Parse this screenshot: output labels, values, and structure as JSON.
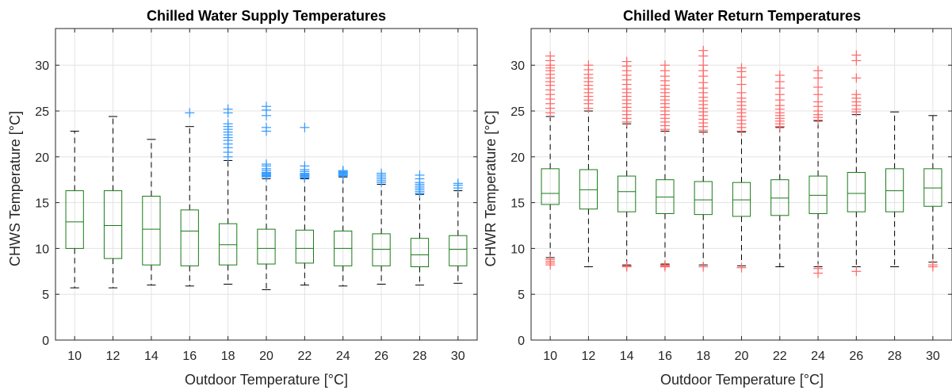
{
  "chart_data": [
    {
      "type": "box",
      "title": "Chilled Water Supply Temperatures",
      "xlabel": "Outdoor Temperature [°C]",
      "ylabel": "CHWS Temperature [°C]",
      "categories": [
        "10",
        "12",
        "14",
        "16",
        "18",
        "20",
        "22",
        "24",
        "26",
        "28",
        "30"
      ],
      "ylim": [
        0,
        34
      ],
      "yticks": [
        0,
        5,
        10,
        15,
        20,
        25,
        30
      ],
      "grid": true,
      "box_color": "#1a7a1a",
      "outlier_color": "#3399ff",
      "boxes": [
        {
          "x": "10",
          "whisker_low": 5.7,
          "q1": 10.0,
          "median": 12.9,
          "q3": 16.3,
          "whisker_high": 22.8,
          "outliers": []
        },
        {
          "x": "12",
          "whisker_low": 5.7,
          "q1": 8.9,
          "median": 12.5,
          "q3": 16.3,
          "whisker_high": 24.4,
          "outliers": []
        },
        {
          "x": "14",
          "whisker_low": 6.0,
          "q1": 8.2,
          "median": 12.1,
          "q3": 15.7,
          "whisker_high": 21.9,
          "outliers": []
        },
        {
          "x": "16",
          "whisker_low": 5.9,
          "q1": 8.1,
          "median": 11.9,
          "q3": 14.2,
          "whisker_high": 23.3,
          "outliers": [
            24.8
          ]
        },
        {
          "x": "18",
          "whisker_low": 6.1,
          "q1": 8.2,
          "median": 10.4,
          "q3": 12.7,
          "whisker_high": 19.6,
          "outliers": [
            20.0,
            20.5,
            21.0,
            21.4,
            21.8,
            22.1,
            22.4,
            22.7,
            23.0,
            23.3,
            23.6,
            24.8,
            25.2
          ]
        },
        {
          "x": "20",
          "whisker_low": 5.5,
          "q1": 8.3,
          "median": 10.0,
          "q3": 12.1,
          "whisker_high": 17.6,
          "outliers": [
            17.8,
            17.9,
            18.0,
            18.1,
            18.2,
            18.3,
            18.5,
            18.7,
            19.0,
            19.2,
            22.8,
            23.2,
            24.5,
            25.1,
            25.5
          ]
        },
        {
          "x": "22",
          "whisker_low": 6.0,
          "q1": 8.4,
          "median": 10.0,
          "q3": 12.0,
          "whisker_high": 17.6,
          "outliers": [
            17.7,
            17.8,
            17.9,
            18.0,
            18.1,
            18.2,
            18.4,
            18.6,
            19.0,
            23.2
          ]
        },
        {
          "x": "24",
          "whisker_low": 5.9,
          "q1": 8.1,
          "median": 10.0,
          "q3": 11.9,
          "whisker_high": 17.8,
          "outliers": [
            17.9,
            18.0,
            18.1,
            18.2,
            18.3,
            18.4,
            18.5
          ]
        },
        {
          "x": "26",
          "whisker_low": 6.1,
          "q1": 8.1,
          "median": 9.9,
          "q3": 11.6,
          "whisker_high": 17.0,
          "outliers": [
            17.2,
            17.4,
            17.6,
            17.8,
            18.0,
            18.2
          ]
        },
        {
          "x": "28",
          "whisker_low": 6.0,
          "q1": 8.0,
          "median": 9.3,
          "q3": 11.1,
          "whisker_high": 15.9,
          "outliers": [
            16.0,
            16.2,
            16.4,
            16.6,
            16.8,
            17.0,
            17.2,
            17.6,
            18.0
          ]
        },
        {
          "x": "30",
          "whisker_low": 6.2,
          "q1": 8.1,
          "median": 9.9,
          "q3": 11.4,
          "whisker_high": 16.3,
          "outliers": [
            16.6,
            16.9,
            17.1
          ]
        }
      ]
    },
    {
      "type": "box",
      "title": "Chilled Water Return Temperatures",
      "xlabel": "Outdoor Temperature [°C]",
      "ylabel": "CHWR Temperature [°C]",
      "categories": [
        "10",
        "12",
        "14",
        "16",
        "18",
        "20",
        "22",
        "24",
        "26",
        "28",
        "30"
      ],
      "ylim": [
        0,
        34
      ],
      "yticks": [
        0,
        5,
        10,
        15,
        20,
        25,
        30
      ],
      "grid": true,
      "box_color": "#1a7a1a",
      "outlier_color": "#ff6666",
      "boxes": [
        {
          "x": "10",
          "whisker_low": 9.0,
          "q1": 14.8,
          "median": 16.0,
          "q3": 18.7,
          "whisker_high": 24.4,
          "outliers": [
            8.2,
            8.4,
            8.6,
            8.8,
            24.8,
            25.3,
            25.8,
            26.3,
            26.8,
            27.3,
            27.8,
            28.2,
            28.6,
            29.0,
            29.4,
            29.7,
            30.0,
            30.5,
            31.0
          ]
        },
        {
          "x": "12",
          "whisker_low": 8.0,
          "q1": 14.3,
          "median": 16.4,
          "q3": 18.6,
          "whisker_high": 25.0,
          "outliers": [
            25.3,
            25.8,
            26.2,
            26.6,
            27.0,
            27.4,
            27.8,
            28.2,
            28.6,
            29.0,
            29.5,
            30.0
          ]
        },
        {
          "x": "14",
          "whisker_low": 8.2,
          "q1": 14.0,
          "median": 16.2,
          "q3": 17.9,
          "whisker_high": 23.6,
          "outliers": [
            8.0,
            8.1,
            23.8,
            24.2,
            24.6,
            25.0,
            25.4,
            25.8,
            26.2,
            26.6,
            27.0,
            27.4,
            27.9,
            28.4,
            28.9,
            29.4,
            29.9,
            30.4
          ]
        },
        {
          "x": "16",
          "whisker_low": 8.3,
          "q1": 13.8,
          "median": 15.6,
          "q3": 17.5,
          "whisker_high": 22.8,
          "outliers": [
            8.0,
            8.1,
            8.2,
            23.0,
            23.4,
            23.8,
            24.2,
            24.6,
            25.0,
            25.4,
            25.8,
            26.2,
            26.6,
            27.0,
            27.4,
            27.8,
            28.3,
            28.8,
            29.4,
            30.0
          ]
        },
        {
          "x": "18",
          "whisker_low": 8.2,
          "q1": 13.7,
          "median": 15.3,
          "q3": 17.3,
          "whisker_high": 22.7,
          "outliers": [
            8.0,
            22.9,
            23.3,
            23.7,
            24.1,
            24.5,
            24.9,
            25.3,
            25.7,
            26.1,
            26.5,
            27.0,
            27.5,
            28.1,
            28.8,
            29.4,
            30.0,
            31.0,
            31.6
          ]
        },
        {
          "x": "20",
          "whisker_low": 8.1,
          "q1": 13.5,
          "median": 15.3,
          "q3": 17.2,
          "whisker_high": 22.7,
          "outliers": [
            7.9,
            22.8,
            23.2,
            23.6,
            24.0,
            24.4,
            24.8,
            25.2,
            25.6,
            26.0,
            26.4,
            27.0,
            27.9,
            28.7,
            29.3,
            29.7
          ]
        },
        {
          "x": "22",
          "whisker_low": 8.0,
          "q1": 13.6,
          "median": 15.5,
          "q3": 17.5,
          "whisker_high": 23.2,
          "outliers": [
            23.3,
            23.6,
            23.9,
            24.2,
            24.5,
            24.8,
            25.2,
            25.6,
            26.2,
            26.8,
            27.5,
            28.2,
            28.9
          ]
        },
        {
          "x": "24",
          "whisker_low": 8.0,
          "q1": 13.8,
          "median": 15.8,
          "q3": 17.9,
          "whisker_high": 23.9,
          "outliers": [
            7.3,
            7.8,
            24.0,
            24.3,
            24.6,
            25.0,
            25.5,
            26.0,
            26.8,
            27.6,
            28.6,
            29.4
          ]
        },
        {
          "x": "26",
          "whisker_low": 8.0,
          "q1": 14.0,
          "median": 16.0,
          "q3": 18.3,
          "whisker_high": 24.6,
          "outliers": [
            7.5,
            24.9,
            25.2,
            25.6,
            26.0,
            26.4,
            26.8,
            28.6,
            30.5,
            31.1
          ]
        },
        {
          "x": "28",
          "whisker_low": 8.0,
          "q1": 14.0,
          "median": 16.3,
          "q3": 18.7,
          "whisker_high": 24.9,
          "outliers": []
        },
        {
          "x": "30",
          "whisker_low": 8.5,
          "q1": 14.6,
          "median": 16.6,
          "q3": 18.7,
          "whisker_high": 24.5,
          "outliers": [
            8.0,
            8.2
          ]
        }
      ]
    }
  ]
}
